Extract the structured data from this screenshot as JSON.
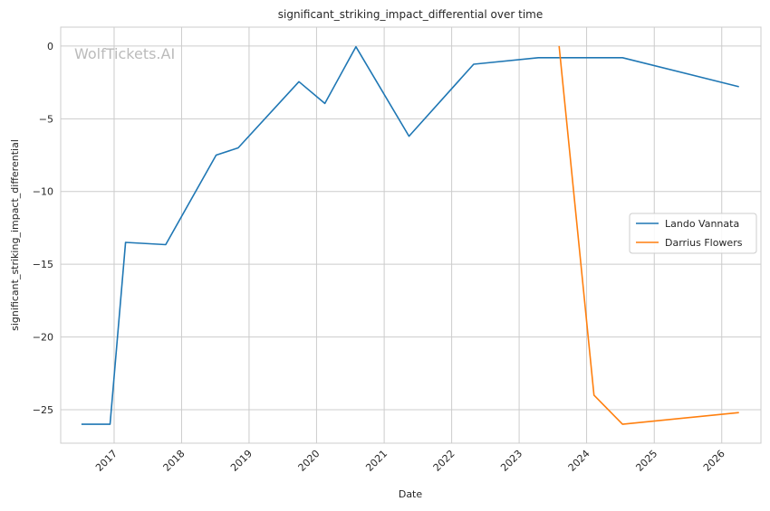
{
  "chart_data": {
    "type": "line",
    "title": "significant_striking_impact_differential over time",
    "xlabel": "Date",
    "ylabel": "significant_striking_impact_differential",
    "watermark": "WolfTickets.AI",
    "xlim": [
      "2016-03-18",
      "2026-08-01"
    ],
    "ylim": [
      -27.3,
      1.3
    ],
    "x_ticks": [
      "2017-01-01",
      "2018-01-01",
      "2019-01-01",
      "2020-01-01",
      "2021-01-01",
      "2022-01-01",
      "2023-01-01",
      "2024-01-01",
      "2025-01-01",
      "2026-01-01"
    ],
    "x_tick_labels": [
      "2017",
      "2018",
      "2019",
      "2020",
      "2021",
      "2022",
      "2023",
      "2024",
      "2025",
      "2026"
    ],
    "y_ticks": [
      0,
      -5,
      -10,
      -15,
      -20,
      -25
    ],
    "y_tick_labels": [
      "0",
      "−5",
      "−10",
      "−15",
      "−20",
      "−25"
    ],
    "grid": true,
    "legend_position": "center-right",
    "series": [
      {
        "name": "Lando Vannata",
        "color": "#1f77b4",
        "points": [
          {
            "x": "2016-07-08",
            "y": -26.0
          },
          {
            "x": "2016-12-10",
            "y": -26.0
          },
          {
            "x": "2017-03-04",
            "y": -13.5
          },
          {
            "x": "2017-10-07",
            "y": -13.65
          },
          {
            "x": "2018-07-07",
            "y": -7.5
          },
          {
            "x": "2018-11-03",
            "y": -7.0
          },
          {
            "x": "2019-09-28",
            "y": -2.45
          },
          {
            "x": "2020-02-15",
            "y": -3.95
          },
          {
            "x": "2020-08-01",
            "y": -0.05
          },
          {
            "x": "2021-05-15",
            "y": -6.2
          },
          {
            "x": "2022-04-30",
            "y": -1.25
          },
          {
            "x": "2023-04-15",
            "y": -0.8
          },
          {
            "x": "2024-07-13",
            "y": -0.8
          },
          {
            "x": "2026-04-04",
            "y": -2.8
          }
        ]
      },
      {
        "name": "Darrius Flowers",
        "color": "#ff7f0e",
        "points": [
          {
            "x": "2023-08-05",
            "y": 0.0
          },
          {
            "x": "2024-02-10",
            "y": -24.0
          },
          {
            "x": "2024-07-13",
            "y": -26.0
          },
          {
            "x": "2026-04-04",
            "y": -25.2
          }
        ]
      }
    ]
  }
}
